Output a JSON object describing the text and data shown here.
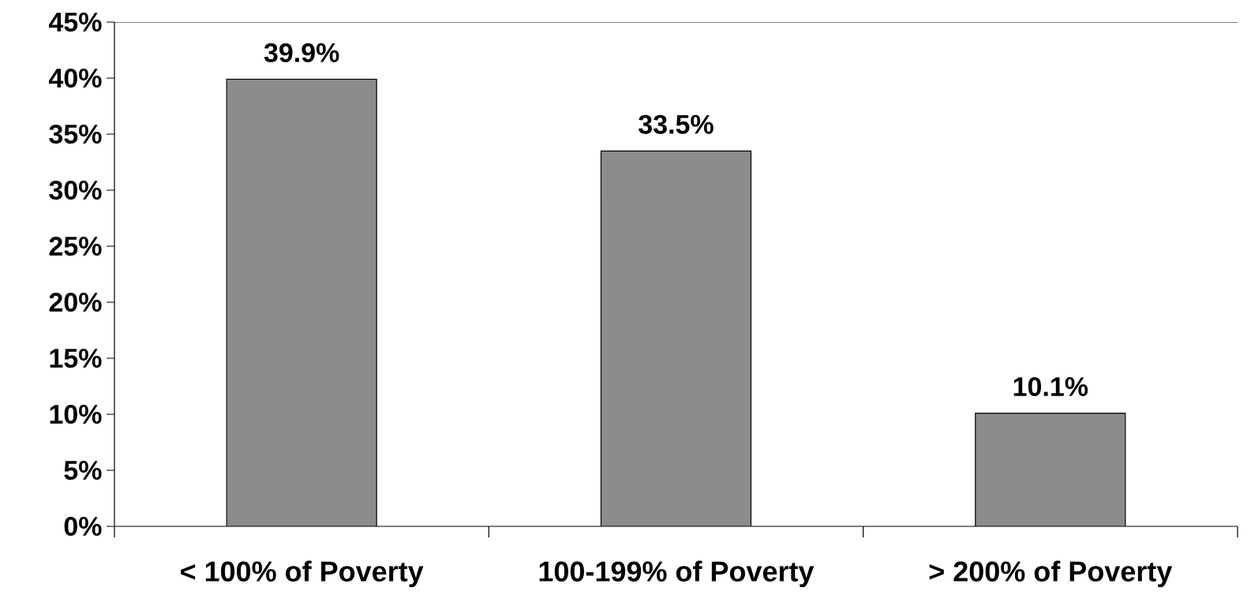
{
  "chart_data": {
    "type": "bar",
    "categories": [
      "< 100% of Poverty",
      "100-199% of Poverty",
      "> 200% of Poverty"
    ],
    "values": [
      39.9,
      33.5,
      10.1
    ],
    "value_labels": [
      "39.9%",
      "33.5%",
      "10.1%"
    ],
    "color": "#8c8c8c",
    "ylim": [
      0,
      45
    ],
    "yticks": [
      {
        "value": 0,
        "label": "0%"
      },
      {
        "value": 5,
        "label": "5%"
      },
      {
        "value": 10,
        "label": "10%"
      },
      {
        "value": 15,
        "label": "15%"
      },
      {
        "value": 20,
        "label": "20%"
      },
      {
        "value": 25,
        "label": "25%"
      },
      {
        "value": 30,
        "label": "30%"
      },
      {
        "value": 35,
        "label": "35%"
      },
      {
        "value": 40,
        "label": "40%"
      },
      {
        "value": 45,
        "label": "45%"
      }
    ],
    "grid": false
  }
}
